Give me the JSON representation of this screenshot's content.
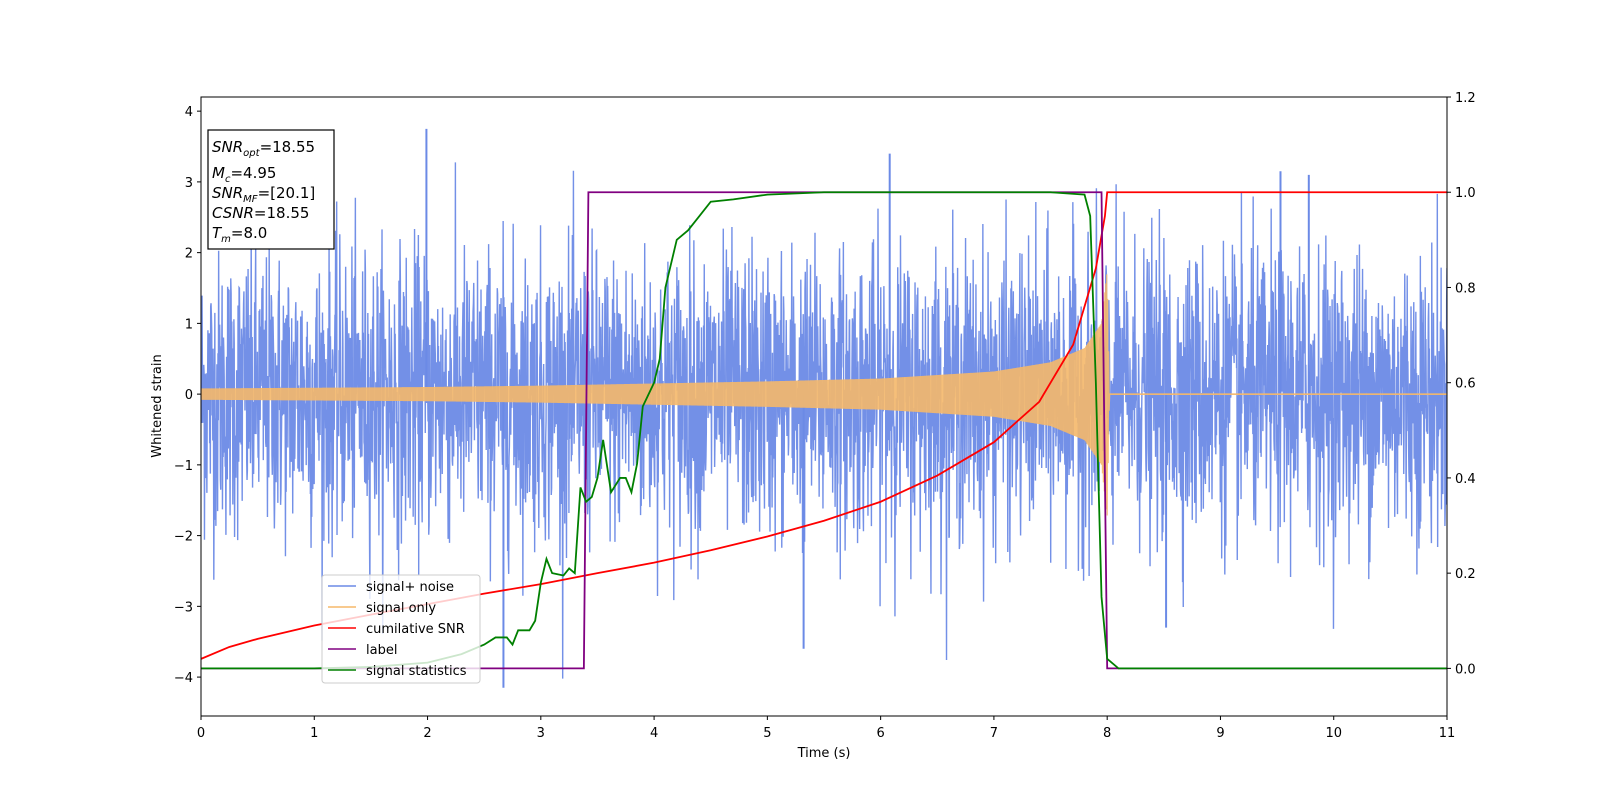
{
  "chart_data": {
    "type": "line",
    "xlabel": "Time (s)",
    "ylabel": "Whitened strain",
    "xlim": [
      0,
      11
    ],
    "ylim_left": [
      -4.55,
      4.2
    ],
    "ylim_right": [
      -0.1,
      1.2
    ],
    "x_ticks": [
      "0",
      "1",
      "2",
      "3",
      "4",
      "5",
      "6",
      "7",
      "8",
      "9",
      "10",
      "11"
    ],
    "y_left_ticks": [
      {
        "value": 4,
        "label": "4"
      },
      {
        "value": 3,
        "label": "3"
      },
      {
        "value": 2,
        "label": "2"
      },
      {
        "value": 1,
        "label": "1"
      },
      {
        "value": 0,
        "label": "0"
      },
      {
        "value": -1,
        "label": "−1"
      },
      {
        "value": -2,
        "label": "−2"
      },
      {
        "value": -3,
        "label": "−3"
      },
      {
        "value": -4,
        "label": "−4"
      }
    ],
    "y_right_ticks": [
      {
        "value": 1.2,
        "label": "1.2"
      },
      {
        "value": 1.0,
        "label": "1.0"
      },
      {
        "value": 0.8,
        "label": "0.8"
      },
      {
        "value": 0.6,
        "label": "0.6"
      },
      {
        "value": 0.4,
        "label": "0.4"
      },
      {
        "value": 0.2,
        "label": "0.2"
      },
      {
        "value": 0.0,
        "label": "0.0"
      }
    ],
    "info_box": {
      "snr_opt": {
        "base": "SNR",
        "sub": "opt",
        "value": "=18.55"
      },
      "mc": {
        "base": "M",
        "sub": "c",
        "value": "=4.95"
      },
      "snr_mf": {
        "base": "SNR",
        "sub": "MF",
        "value": "=[20.1]"
      },
      "csnr": {
        "base": "CSNR",
        "value": "=18.55"
      },
      "tm": {
        "base": "T",
        "sub": "m",
        "value": "=8.0"
      }
    },
    "legend_position": "lower-left",
    "series": [
      {
        "name": "signal+ noise",
        "axis": "left",
        "color": "#6b8ae6",
        "kind": "noise",
        "t_range": [
          0,
          11
        ],
        "std": 1.0,
        "clip": [
          -4.15,
          3.75
        ],
        "spikes": [
          [
            1.99,
            3.75
          ],
          [
            6.08,
            3.4
          ],
          [
            9.53,
            3.15
          ],
          [
            9.78,
            3.1
          ],
          [
            2.67,
            -4.15
          ],
          [
            5.32,
            -3.6
          ],
          [
            8.52,
            -3.3
          ]
        ]
      },
      {
        "name": "signal only",
        "axis": "left",
        "color": "#f5b86a",
        "kind": "chirp_envelope",
        "envelope": [
          [
            0,
            0.08
          ],
          [
            1,
            0.09
          ],
          [
            2,
            0.1
          ],
          [
            3,
            0.12
          ],
          [
            4,
            0.15
          ],
          [
            5,
            0.18
          ],
          [
            6,
            0.22
          ],
          [
            7,
            0.32
          ],
          [
            7.5,
            0.45
          ],
          [
            7.8,
            0.65
          ],
          [
            7.95,
            1.0
          ],
          [
            8.0,
            1.75
          ],
          [
            8.02,
            0.0
          ],
          [
            11,
            0.0
          ]
        ]
      },
      {
        "name": "cumilative SNR",
        "axis": "right",
        "color": "#ff0000",
        "points": [
          [
            0,
            0.02
          ],
          [
            0.25,
            0.045
          ],
          [
            0.5,
            0.062
          ],
          [
            1,
            0.09
          ],
          [
            1.5,
            0.113
          ],
          [
            2,
            0.135
          ],
          [
            2.5,
            0.157
          ],
          [
            3,
            0.177
          ],
          [
            3.5,
            0.2
          ],
          [
            4,
            0.222
          ],
          [
            4.5,
            0.248
          ],
          [
            5,
            0.277
          ],
          [
            5.5,
            0.31
          ],
          [
            6,
            0.35
          ],
          [
            6.5,
            0.405
          ],
          [
            7,
            0.475
          ],
          [
            7.4,
            0.56
          ],
          [
            7.7,
            0.68
          ],
          [
            7.9,
            0.84
          ],
          [
            7.98,
            0.95
          ],
          [
            8.0,
            1.0
          ],
          [
            11,
            1.0
          ]
        ]
      },
      {
        "name": "label",
        "axis": "right",
        "color": "#800080",
        "points": [
          [
            0,
            0.0
          ],
          [
            3.38,
            0.0
          ],
          [
            3.42,
            1.0
          ],
          [
            7.95,
            1.0
          ],
          [
            8.0,
            0.0
          ],
          [
            11,
            0.0
          ]
        ]
      },
      {
        "name": "signal statistics",
        "axis": "right",
        "color": "#008000",
        "points": [
          [
            0,
            0.0
          ],
          [
            1,
            0.0
          ],
          [
            1.5,
            0.003
          ],
          [
            2,
            0.012
          ],
          [
            2.3,
            0.03
          ],
          [
            2.5,
            0.05
          ],
          [
            2.6,
            0.065
          ],
          [
            2.7,
            0.065
          ],
          [
            2.75,
            0.05
          ],
          [
            2.8,
            0.08
          ],
          [
            2.9,
            0.08
          ],
          [
            2.95,
            0.1
          ],
          [
            3.0,
            0.18
          ],
          [
            3.05,
            0.23
          ],
          [
            3.1,
            0.2
          ],
          [
            3.2,
            0.195
          ],
          [
            3.25,
            0.21
          ],
          [
            3.3,
            0.2
          ],
          [
            3.35,
            0.38
          ],
          [
            3.4,
            0.35
          ],
          [
            3.45,
            0.36
          ],
          [
            3.5,
            0.4
          ],
          [
            3.55,
            0.48
          ],
          [
            3.62,
            0.37
          ],
          [
            3.7,
            0.4
          ],
          [
            3.75,
            0.4
          ],
          [
            3.8,
            0.37
          ],
          [
            3.85,
            0.43
          ],
          [
            3.9,
            0.55
          ],
          [
            4.0,
            0.6
          ],
          [
            4.05,
            0.65
          ],
          [
            4.1,
            0.8
          ],
          [
            4.2,
            0.9
          ],
          [
            4.3,
            0.92
          ],
          [
            4.4,
            0.95
          ],
          [
            4.5,
            0.98
          ],
          [
            4.7,
            0.985
          ],
          [
            5.0,
            0.995
          ],
          [
            5.5,
            1.0
          ],
          [
            6.0,
            1.0
          ],
          [
            6.5,
            1.0
          ],
          [
            7.0,
            1.0
          ],
          [
            7.5,
            1.0
          ],
          [
            7.8,
            0.995
          ],
          [
            7.85,
            0.95
          ],
          [
            7.9,
            0.6
          ],
          [
            7.95,
            0.15
          ],
          [
            8.0,
            0.02
          ],
          [
            8.1,
            0.0
          ],
          [
            11,
            0.0
          ]
        ]
      }
    ]
  }
}
